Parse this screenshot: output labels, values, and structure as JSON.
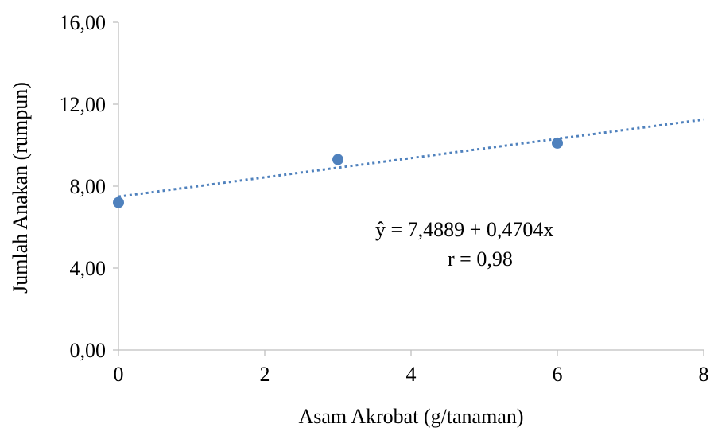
{
  "chart_data": {
    "type": "scatter",
    "title": "",
    "xlabel": "Asam Akrobat (g/tanaman)",
    "ylabel": "Jumlah Anakan (rumpun)",
    "xlim": [
      0,
      8
    ],
    "ylim": [
      0,
      16
    ],
    "xticks": [
      "0",
      "2",
      "4",
      "6",
      "8"
    ],
    "yticks": [
      "0,00",
      "4,00",
      "8,00",
      "12,00",
      "16,00"
    ],
    "grid": false,
    "legend": "none",
    "point_color": "#4f81bd",
    "trendline_color": "#4f81bd",
    "series": [
      {
        "x": [
          0,
          3,
          6
        ],
        "y": [
          7.2,
          9.3,
          10.1
        ]
      }
    ],
    "trendline": {
      "type": "linear",
      "intercept": 7.4889,
      "slope": 0.4704,
      "style": "dotted"
    },
    "annotations": [
      "ŷ =  7,4889 + 0,4704x",
      "r = 0,98"
    ]
  }
}
